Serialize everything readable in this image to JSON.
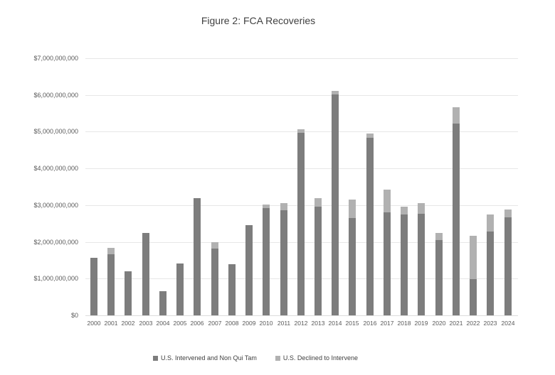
{
  "title": "Figure 2: FCA Recoveries",
  "chart_data": {
    "type": "bar",
    "stacked": true,
    "title": "Figure 2: FCA Recoveries",
    "categories": [
      "2000",
      "2001",
      "2002",
      "2003",
      "2004",
      "2005",
      "2006",
      "2007",
      "2008",
      "2009",
      "2010",
      "2011",
      "2012",
      "2013",
      "2014",
      "2015",
      "2016",
      "2017",
      "2018",
      "2019",
      "2020",
      "2021",
      "2022",
      "2023",
      "2024"
    ],
    "series": [
      {
        "name": "U.S. Intervened and Non Qui Tam",
        "color": "#7d7d7d",
        "values": [
          1560000000,
          1670000000,
          1190000000,
          2240000000,
          660000000,
          1420000000,
          3200000000,
          1820000000,
          1400000000,
          2450000000,
          2920000000,
          2870000000,
          4960000000,
          2960000000,
          6020000000,
          2650000000,
          4840000000,
          2800000000,
          2750000000,
          2760000000,
          2050000000,
          5220000000,
          990000000,
          2280000000,
          2670000000
        ]
      },
      {
        "name": "U.S. Declined to Intervene",
        "color": "#b1b1b1",
        "values": [
          0,
          180000000,
          0,
          0,
          0,
          0,
          0,
          170000000,
          0,
          0,
          100000000,
          200000000,
          100000000,
          230000000,
          100000000,
          500000000,
          110000000,
          620000000,
          210000000,
          290000000,
          190000000,
          450000000,
          1180000000,
          470000000,
          210000000
        ]
      }
    ],
    "xlabel": "",
    "ylabel": "",
    "ylim": [
      0,
      7000000000
    ],
    "y_ticks": [
      "$0",
      "$1,000,000,000",
      "$2,000,000,000",
      "$3,000,000,000",
      "$4,000,000,000",
      "$5,000,000,000",
      "$6,000,000,000",
      "$7,000,000,000"
    ],
    "grid": true,
    "legend_position": "bottom"
  }
}
